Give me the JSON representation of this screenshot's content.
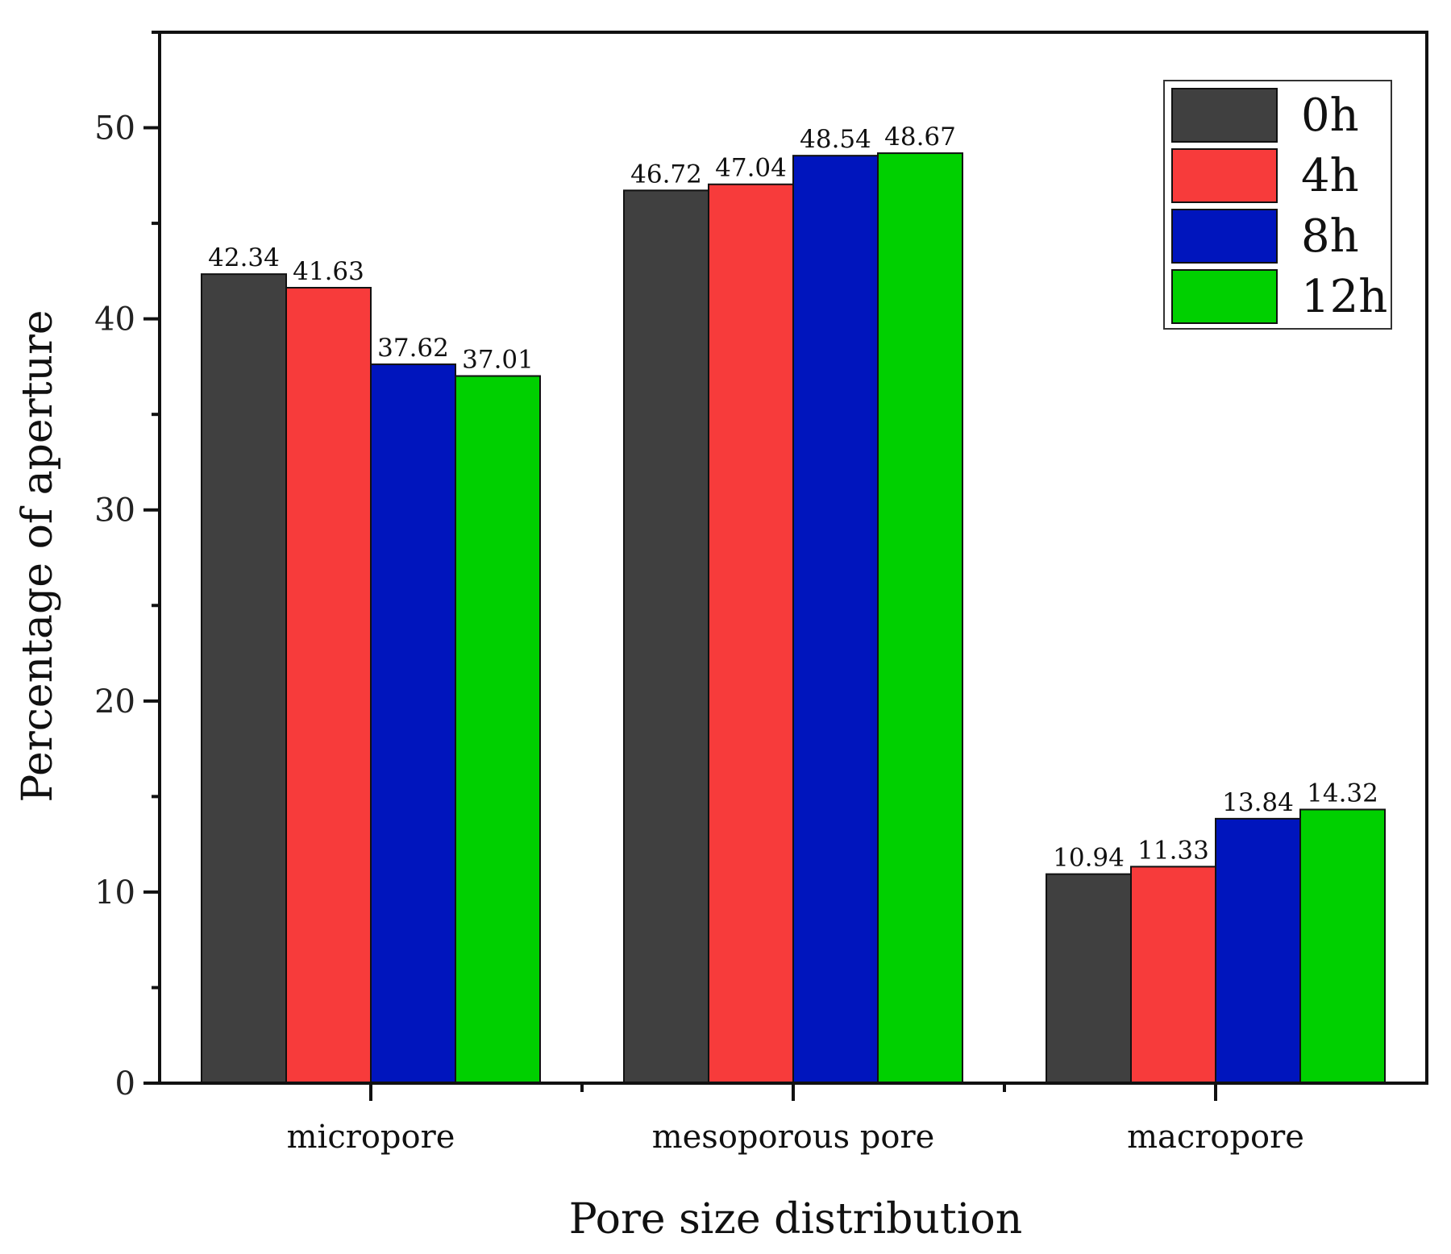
{
  "chart_data": {
    "type": "bar",
    "title": "",
    "xlabel": "Pore size distribution",
    "ylabel": "Percentage of aperture",
    "categories": [
      "micropore",
      "mesoporous pore",
      "macropore"
    ],
    "series": [
      {
        "name": "0h",
        "color": "#404040",
        "values": [
          42.34,
          46.72,
          10.94
        ],
        "labels": [
          "42.34",
          "46.72",
          "10.94"
        ]
      },
      {
        "name": "4h",
        "color": "#f73b3b",
        "values": [
          41.63,
          47.04,
          11.33
        ],
        "labels": [
          "41.63",
          "47.04",
          "11.33"
        ]
      },
      {
        "name": "8h",
        "color": "#0015bd",
        "values": [
          37.62,
          48.54,
          13.84
        ],
        "labels": [
          "37.62",
          "48.54",
          "13.84"
        ]
      },
      {
        "name": "12h",
        "color": "#00d000",
        "values": [
          37.01,
          48.67,
          14.32
        ],
        "labels": [
          "37.01",
          "48.67",
          "14.32"
        ]
      }
    ],
    "ylim": [
      0,
      55
    ],
    "yticks": [
      "0",
      "10",
      "20",
      "30",
      "40",
      "50"
    ],
    "grid": false,
    "legend_position": "top-right"
  }
}
